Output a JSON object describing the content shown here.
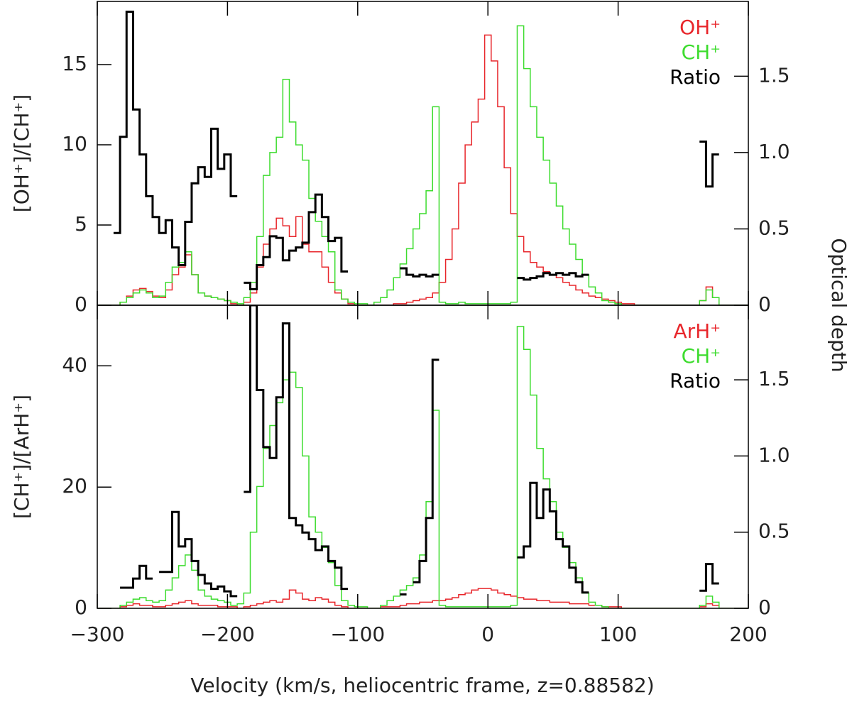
{
  "chart_data": [
    {
      "type": "step",
      "ylabel": "[OH⁺]/[CH⁺]",
      "y2label": "Optical depth",
      "xlim": [
        -300,
        200
      ],
      "ylim": [
        0,
        18.94
      ],
      "yticks": [
        0,
        5,
        10,
        15
      ],
      "y2lim": [
        0,
        1.99
      ],
      "y2ticks": [
        0,
        0.5,
        {
          "value": 1,
          "label": "1.0"
        },
        1.5
      ],
      "x": [
        -300,
        -295,
        -290,
        -285,
        -280,
        -275,
        -270,
        -265,
        -260,
        -255,
        -250,
        -245,
        -240,
        -235,
        -230,
        -225,
        -220,
        -215,
        -210,
        -205,
        -200,
        -195,
        -190,
        -185,
        -180,
        -175,
        -170,
        -165,
        -160,
        -155,
        -150,
        -145,
        -140,
        -135,
        -130,
        -125,
        -120,
        -115,
        -110,
        -105,
        -100,
        -95,
        -90,
        -85,
        -80,
        -75,
        -70,
        -65,
        -60,
        -55,
        -50,
        -45,
        -40,
        -35,
        -30,
        -25,
        -20,
        -15,
        -10,
        -5,
        0,
        5,
        10,
        15,
        20,
        25,
        30,
        35,
        40,
        45,
        50,
        55,
        60,
        65,
        70,
        75,
        80,
        85,
        90,
        95,
        100,
        105,
        110,
        115,
        120,
        125,
        130,
        135,
        140,
        145,
        150,
        155,
        160,
        165,
        170,
        175,
        180,
        185,
        190,
        195,
        200
      ],
      "series": [
        {
          "name": "OH⁺",
          "color": "#e8262b",
          "axis": "y2",
          "values": [
            0,
            0,
            0,
            0,
            0.02,
            0.06,
            0.1,
            0.11,
            0.09,
            0.06,
            0.05,
            0.1,
            0.2,
            0.25,
            0.33,
            0.2,
            0.08,
            0.06,
            0.05,
            0.04,
            0.03,
            0.01,
            0,
            0.02,
            0.08,
            0.25,
            0.4,
            0.5,
            0.57,
            0.52,
            0.45,
            0.58,
            0.4,
            0.35,
            0.35,
            0.25,
            0.15,
            0.08,
            0.04,
            0.01,
            0,
            0,
            0,
            0,
            0,
            0,
            0.01,
            0.01,
            0.02,
            0.03,
            0.04,
            0.05,
            0.08,
            0.15,
            0.3,
            0.5,
            0.8,
            1.05,
            1.2,
            1.35,
            1.77,
            1.6,
            1.3,
            0.9,
            0.6,
            0.45,
            0.35,
            0.28,
            0.25,
            0.22,
            0.2,
            0.18,
            0.15,
            0.13,
            0.1,
            0.08,
            0.06,
            0.05,
            0.04,
            0.03,
            0.02,
            0.01,
            0.01,
            0,
            0,
            0,
            0,
            0,
            0,
            0,
            0,
            0,
            0,
            0.03,
            0.12,
            0.05,
            0,
            0,
            0,
            0,
            0
          ]
        },
        {
          "name": "CH⁺",
          "color": "#3ddc2e",
          "axis": "y2",
          "values": [
            0,
            0,
            0,
            0,
            0.02,
            0.05,
            0.08,
            0.1,
            0.08,
            0.05,
            0.06,
            0.15,
            0.25,
            0.28,
            0.35,
            0.2,
            0.08,
            0.06,
            0.05,
            0.04,
            0.03,
            0.02,
            0.01,
            0.05,
            0.15,
            0.45,
            0.85,
            1.0,
            1.1,
            1.48,
            1.2,
            1.05,
            0.95,
            0.7,
            0.55,
            0.45,
            0.35,
            0.1,
            0.04,
            0.02,
            0.01,
            0.01,
            0,
            0.02,
            0.05,
            0.1,
            0.18,
            0.27,
            0.37,
            0.5,
            0.6,
            0.75,
            1.3,
            0.02,
            0.01,
            0.01,
            0.02,
            0.01,
            0.01,
            0.01,
            0.01,
            0.01,
            0.01,
            0.01,
            0.02,
            1.83,
            1.55,
            1.3,
            1.1,
            0.95,
            0.8,
            0.65,
            0.5,
            0.4,
            0.3,
            0.2,
            0.12,
            0.08,
            0.03,
            0.02,
            0.01,
            0,
            0,
            0,
            0,
            0,
            0,
            0,
            0,
            0,
            0,
            0,
            0,
            0.03,
            0.1,
            0.05,
            0,
            0,
            0,
            0,
            0
          ]
        },
        {
          "name": "Ratio",
          "color": "#000000",
          "axis": "y",
          "values": [
            null,
            null,
            null,
            4.5,
            10.5,
            18.3,
            12.2,
            9.4,
            6.8,
            5.5,
            4.5,
            5.3,
            3.6,
            2.5,
            5.2,
            7.6,
            8.6,
            8.0,
            11.0,
            8.5,
            9.4,
            6.8,
            null,
            1.4,
            1.0,
            2.5,
            3.0,
            4.3,
            4.2,
            2.8,
            3.4,
            3.6,
            3.9,
            5.8,
            6.9,
            5.5,
            4.0,
            4.2,
            2.1,
            null,
            null,
            null,
            null,
            null,
            null,
            null,
            null,
            2.3,
            1.9,
            1.8,
            1.9,
            1.8,
            1.9,
            null,
            null,
            null,
            null,
            null,
            null,
            null,
            null,
            null,
            null,
            null,
            null,
            1.7,
            1.6,
            1.7,
            1.8,
            2.0,
            1.9,
            2.0,
            1.9,
            2.0,
            1.8,
            1.9,
            null,
            null,
            null,
            null,
            null,
            null,
            null,
            null,
            null,
            null,
            null,
            null,
            null,
            null,
            null,
            null,
            null,
            10.2,
            7.4,
            9.4,
            null,
            null,
            null,
            null,
            null
          ]
        }
      ]
    },
    {
      "type": "step",
      "ylabel": "[CH⁺]/[ArH⁺]",
      "xlabel": "Velocity (km/s, heliocentric frame, z=0.88582)",
      "xlim": [
        -300,
        200
      ],
      "xticks": [
        {
          "value": -300,
          "label": "−300"
        },
        {
          "value": -200,
          "label": "−200"
        },
        {
          "value": -100,
          "label": "−100"
        },
        0,
        100,
        200
      ],
      "ylim": [
        0,
        50
      ],
      "yticks": [
        0,
        20,
        40
      ],
      "y2lim": [
        0,
        1.99
      ],
      "y2ticks": [
        0,
        0.5,
        {
          "value": 1,
          "label": "1.0"
        },
        1.5
      ],
      "x": [
        -300,
        -295,
        -290,
        -285,
        -280,
        -275,
        -270,
        -265,
        -260,
        -255,
        -250,
        -245,
        -240,
        -235,
        -230,
        -225,
        -220,
        -215,
        -210,
        -205,
        -200,
        -195,
        -190,
        -185,
        -180,
        -175,
        -170,
        -165,
        -160,
        -155,
        -150,
        -145,
        -140,
        -135,
        -130,
        -125,
        -120,
        -115,
        -110,
        -105,
        -100,
        -95,
        -90,
        -85,
        -80,
        -75,
        -70,
        -65,
        -60,
        -55,
        -50,
        -45,
        -40,
        -35,
        -30,
        -25,
        -20,
        -15,
        -10,
        -5,
        0,
        5,
        10,
        15,
        20,
        25,
        30,
        35,
        40,
        45,
        50,
        55,
        60,
        65,
        70,
        75,
        80,
        85,
        90,
        95,
        100,
        105,
        110,
        115,
        120,
        125,
        130,
        135,
        140,
        145,
        150,
        155,
        160,
        165,
        170,
        175,
        180,
        185,
        190,
        195,
        200
      ],
      "series": [
        {
          "name": "ArH⁺",
          "color": "#e8262b",
          "axis": "y2",
          "values": [
            0,
            0,
            0,
            0,
            0.01,
            0.02,
            0.03,
            0.02,
            0.02,
            0.01,
            0.01,
            0.02,
            0.03,
            0.04,
            0.05,
            0.03,
            0.02,
            0.02,
            0.02,
            0.01,
            0.01,
            0.01,
            0,
            0.01,
            0.02,
            0.03,
            0.04,
            0.05,
            0.04,
            0.06,
            0.12,
            0.1,
            0.06,
            0.05,
            0.07,
            0.06,
            0.04,
            0.02,
            0.01,
            0,
            0,
            0,
            0,
            0,
            0.01,
            0.01,
            0.01,
            0.02,
            0.03,
            0.03,
            0.04,
            0.04,
            0.05,
            0.05,
            0.06,
            0.07,
            0.09,
            0.1,
            0.12,
            0.13,
            0.13,
            0.12,
            0.1,
            0.09,
            0.08,
            0.07,
            0.06,
            0.06,
            0.05,
            0.05,
            0.04,
            0.04,
            0.04,
            0.03,
            0.03,
            0.03,
            0.02,
            0.02,
            0.01,
            0.01,
            0.01,
            0,
            0,
            0,
            0,
            0,
            0,
            0,
            0,
            0,
            0,
            0,
            0,
            0.01,
            0.03,
            0.02,
            0,
            0,
            0,
            0,
            0
          ]
        },
        {
          "name": "CH⁺",
          "color": "#3ddc2e",
          "axis": "y2",
          "values": [
            0,
            0,
            0,
            0,
            0.02,
            0.04,
            0.06,
            0.07,
            0.05,
            0.04,
            0.05,
            0.12,
            0.2,
            0.28,
            0.35,
            0.25,
            0.12,
            0.08,
            0.06,
            0.05,
            0.04,
            0.02,
            0.03,
            0.1,
            0.5,
            0.8,
            1.05,
            1.2,
            1.35,
            1.5,
            1.55,
            1.45,
            1.0,
            0.6,
            0.5,
            0.4,
            0.3,
            0.15,
            0.05,
            0.02,
            0.01,
            0.01,
            0,
            0,
            0.02,
            0.05,
            0.08,
            0.12,
            0.15,
            0.2,
            0.35,
            0.7,
            1.3,
            0.02,
            0.01,
            0.01,
            0.01,
            0.01,
            0.01,
            0.01,
            0.01,
            0.01,
            0.01,
            0.01,
            0.02,
            1.85,
            1.7,
            1.4,
            1.05,
            0.85,
            0.7,
            0.5,
            0.4,
            0.3,
            0.2,
            0.1,
            0.04,
            0.02,
            0.01,
            0,
            0,
            0,
            0,
            0,
            0,
            0,
            0,
            0,
            0,
            0,
            0,
            0,
            0,
            0.02,
            0.08,
            0.04,
            0,
            0,
            0,
            0,
            0
          ]
        },
        {
          "name": "Ratio",
          "color": "#000000",
          "axis": "y",
          "values": [
            null,
            null,
            null,
            null,
            3.4,
            3.4,
            4.9,
            7.0,
            4.9,
            null,
            6.0,
            6.0,
            15.9,
            10.2,
            11.4,
            7.8,
            5.5,
            4.1,
            3.2,
            3.6,
            2.8,
            2.0,
            null,
            19.2,
            50,
            36,
            26.6,
            24.8,
            34.8,
            47,
            14.9,
            13.7,
            12.5,
            11.4,
            9.6,
            10.2,
            7.8,
            6.7,
            3.2,
            null,
            null,
            null,
            null,
            null,
            null,
            null,
            null,
            2.3,
            null,
            4.3,
            7.8,
            14.9,
            41,
            null,
            null,
            null,
            null,
            null,
            null,
            null,
            null,
            null,
            null,
            null,
            null,
            8.4,
            10.2,
            20.7,
            14.9,
            19.6,
            16,
            11.4,
            10.2,
            6.7,
            4.3,
            2.6,
            null,
            null,
            null,
            null,
            null,
            null,
            null,
            null,
            null,
            null,
            null,
            null,
            null,
            null,
            null,
            null,
            null,
            2.9,
            7.3,
            4.1,
            null,
            null,
            null,
            null,
            null
          ]
        }
      ]
    }
  ]
}
